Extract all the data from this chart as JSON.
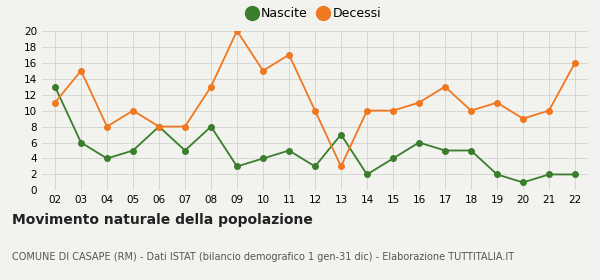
{
  "years": [
    "02",
    "03",
    "04",
    "05",
    "06",
    "07",
    "08",
    "09",
    "10",
    "11",
    "12",
    "13",
    "14",
    "15",
    "16",
    "17",
    "18",
    "19",
    "20",
    "21",
    "22"
  ],
  "nascite": [
    13,
    6,
    4,
    5,
    8,
    5,
    8,
    3,
    4,
    5,
    3,
    7,
    2,
    4,
    6,
    5,
    5,
    2,
    1,
    2,
    2
  ],
  "decessi": [
    11,
    15,
    8,
    10,
    8,
    8,
    13,
    20,
    15,
    17,
    10,
    3,
    10,
    10,
    11,
    13,
    10,
    11,
    9,
    10,
    16
  ],
  "nascite_color": "#3a7d2c",
  "decessi_color": "#f07820",
  "bg_color": "#f2f2ee",
  "grid_color": "#cccccc",
  "ylim": [
    0,
    20
  ],
  "yticks": [
    0,
    2,
    4,
    6,
    8,
    10,
    12,
    14,
    16,
    18,
    20
  ],
  "title": "Movimento naturale della popolazione",
  "subtitle": "COMUNE DI CASAPE (RM) - Dati ISTAT (bilancio demografico 1 gen-31 dic) - Elaborazione TUTTITALIA.IT",
  "legend_nascite": "Nascite",
  "legend_decessi": "Decessi",
  "title_fontsize": 10,
  "subtitle_fontsize": 7,
  "tick_fontsize": 7.5,
  "marker_size": 4,
  "line_width": 1.3
}
